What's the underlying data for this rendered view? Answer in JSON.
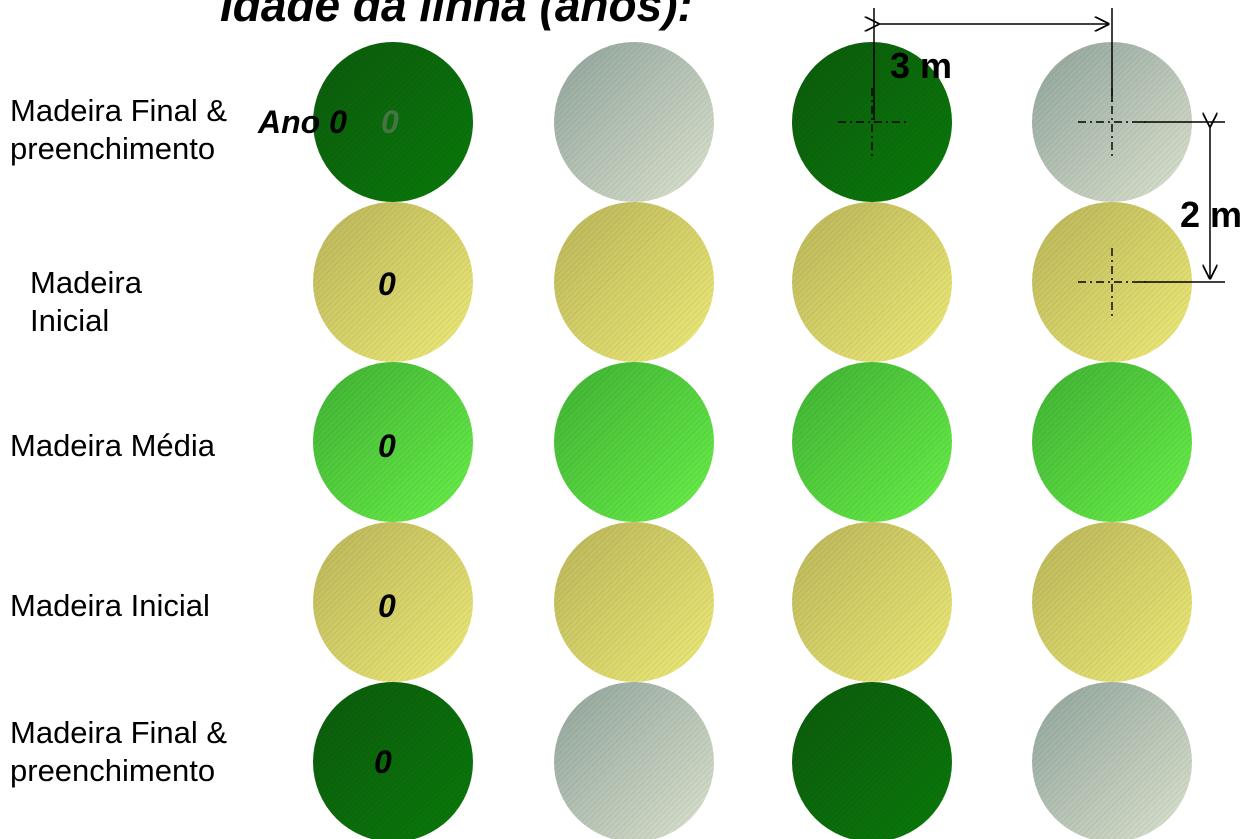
{
  "title": "Idade da linha (anos):",
  "row_labels": [
    "Madeira Final &\npreenchimento",
    "Madeira\nInicial",
    "Madeira Média",
    "Madeira Inicial",
    "Madeira Final &\npreenchimento"
  ],
  "year_label": "Ano 0",
  "year_marker": "0",
  "row_values": [
    "0",
    "0",
    "0",
    "0"
  ],
  "dimensions": {
    "spacing_between_trees": "3 m",
    "spacing_between_rows": "2 m"
  },
  "colors": {
    "dark_green": "#0a6a0a",
    "grey": "#b9c6bc",
    "yellow": "#d6d56a",
    "light_green": "#4fd33a"
  },
  "grid": [
    [
      "dark_green",
      "grey",
      "dark_green",
      "grey"
    ],
    [
      "yellow",
      "yellow",
      "yellow",
      "yellow"
    ],
    [
      "light_green",
      "light_green",
      "light_green",
      "light_green"
    ],
    [
      "yellow",
      "yellow",
      "yellow",
      "yellow"
    ],
    [
      "dark_green",
      "grey",
      "dark_green",
      "grey"
    ]
  ]
}
